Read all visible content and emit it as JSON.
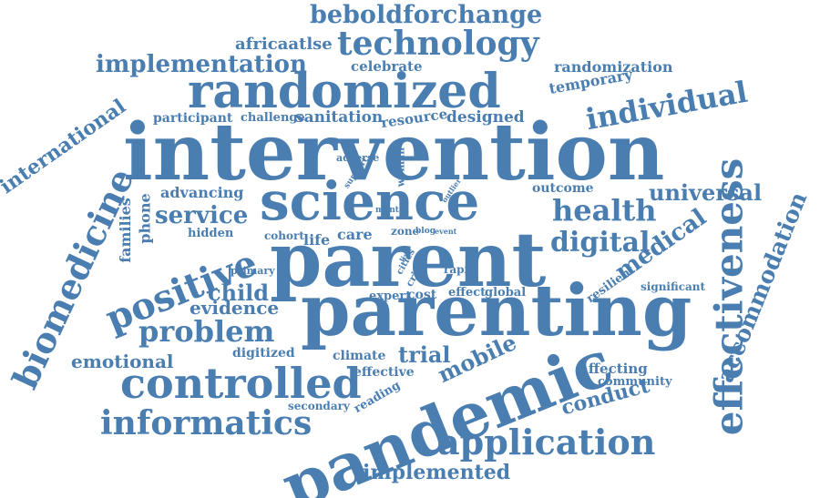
{
  "colors": {
    "word": "#4a7eb1",
    "background": "#ffffff"
  },
  "words": [
    "intervention",
    "parenting",
    "parent",
    "science",
    "pandemic",
    "randomized",
    "controlled",
    "effectiveness",
    "positive",
    "biomedicine",
    "technology",
    "informatics",
    "application",
    "individual",
    "implementation",
    "beboldforchange",
    "accommodation",
    "problem",
    "health",
    "digital",
    "international",
    "service",
    "medical",
    "universal",
    "child",
    "emotional",
    "evidence",
    "trial",
    "mobile",
    "implemented",
    "conduct",
    "africaatlse",
    "randomization",
    "temporary",
    "celebrate",
    "advancing",
    "families",
    "phone",
    "participant",
    "challenge",
    "sanitation",
    "resource",
    "designed",
    "outcome",
    "care",
    "life",
    "cohort",
    "hidden",
    "primary",
    "digitized",
    "climate",
    "effective",
    "reading",
    "secondary",
    "affecting",
    "community",
    "significant",
    "resilient",
    "expert",
    "cost",
    "effect",
    "global",
    "rapid",
    "zone",
    "blog",
    "event",
    "adverse",
    "support",
    "woman",
    "mental",
    "outlier",
    "list",
    "cities",
    "crisis"
  ]
}
